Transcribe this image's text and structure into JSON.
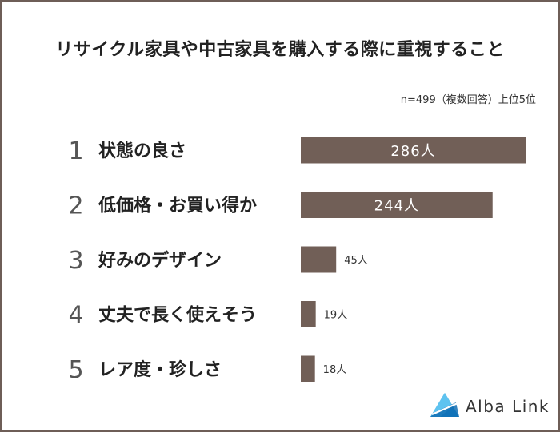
{
  "title": "リサイクル家具や中古家具を購入する際に重視すること",
  "note": "n=499（複数回答）上位5位",
  "brand": {
    "name": "Alba Link",
    "logo_icon": "mountain-triangle-logo"
  },
  "colors": {
    "bar": "#715f57",
    "bar_label_inside": "#ffffff",
    "bar_label_outside": "#333333",
    "rank_number": "#555555",
    "frame": "#6e5e57"
  },
  "chart_data": {
    "type": "bar",
    "orientation": "horizontal",
    "unit": "人",
    "title": "",
    "xlabel": "",
    "ylabel": "",
    "xlim": [
      0,
      286
    ],
    "ranks": [
      "1",
      "2",
      "3",
      "4",
      "5"
    ],
    "categories": [
      "状態の良さ",
      "低価格・お買い得か",
      "好みのデザイン",
      "丈夫で長く使えそう",
      "レア度・珍しさ"
    ],
    "values": [
      286,
      244,
      45,
      19,
      18
    ],
    "value_labels": [
      "286人",
      "244人",
      "45人",
      "19人",
      "18人"
    ]
  }
}
